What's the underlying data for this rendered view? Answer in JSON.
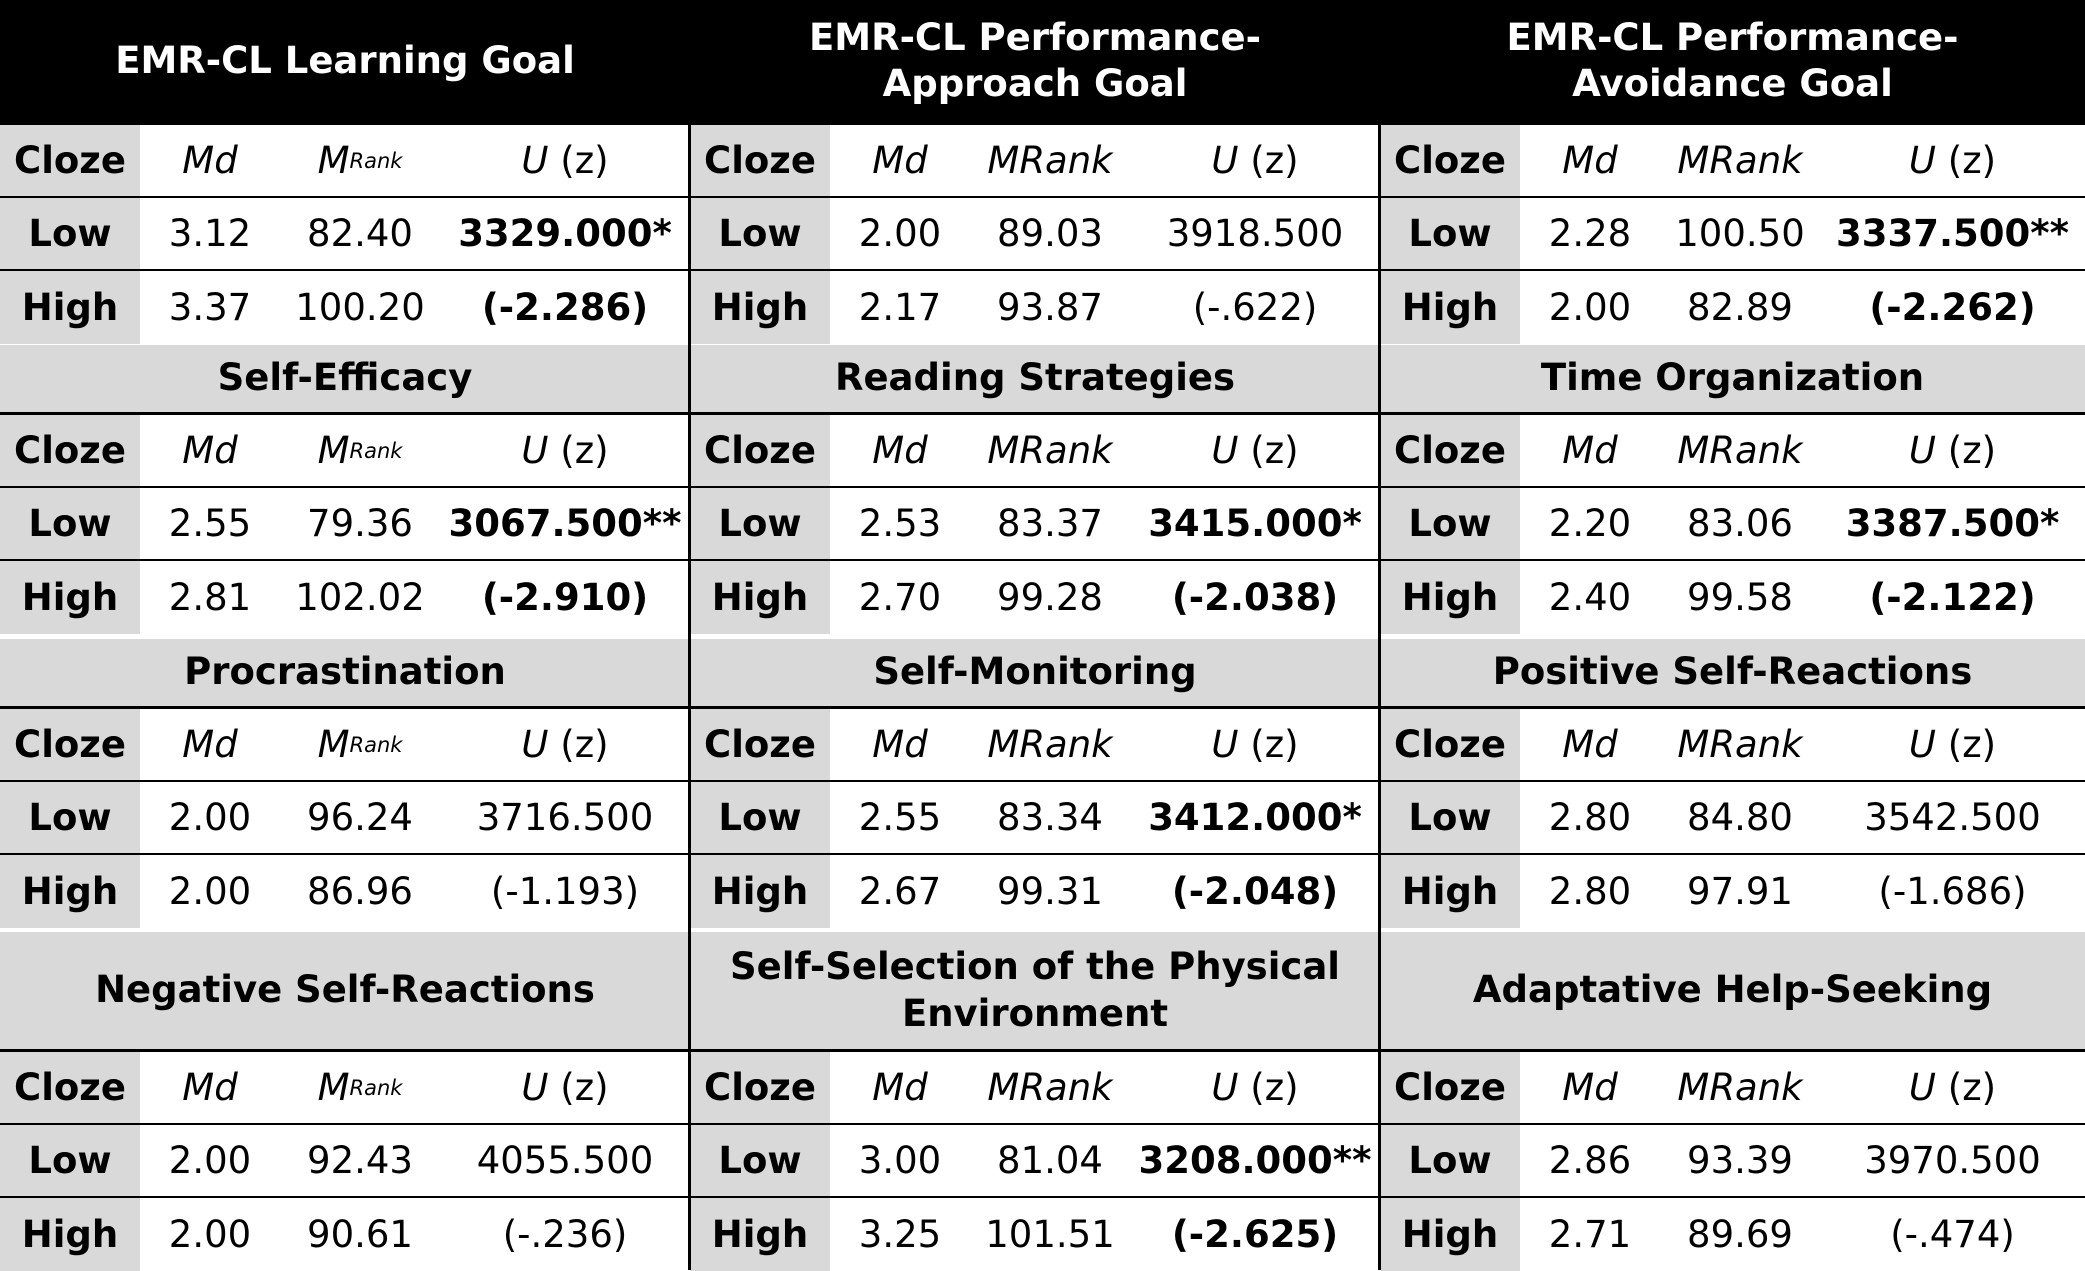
{
  "table": {
    "label_cloze": "Cloze",
    "label_md": "Md",
    "label_mrank": "MRank",
    "label_m": "M",
    "label_rank_sub": "Rank",
    "label_u": "U",
    "label_z": "(z)",
    "label_low": "Low",
    "label_high": "High"
  },
  "rows": [
    [
      {
        "title": "EMR-CL Learning Goal",
        "header_style": "dark",
        "mrank_style": "subscript",
        "low": {
          "md": "3.12",
          "mrank": "82.40",
          "u": "3329.000*",
          "sig": true
        },
        "high": {
          "md": "3.37",
          "mrank": "100.20",
          "u": "(-2.286)",
          "sig": true
        }
      },
      {
        "title": "EMR-CL Performance-Approach Goal",
        "header_style": "dark",
        "mrank_style": "plain",
        "low": {
          "md": "2.00",
          "mrank": "89.03",
          "u": "3918.500",
          "sig": false
        },
        "high": {
          "md": "2.17",
          "mrank": "93.87",
          "u": "(-.622)",
          "sig": false
        }
      },
      {
        "title": "EMR-CL Performance-Avoidance Goal",
        "header_style": "dark",
        "mrank_style": "plain",
        "low": {
          "md": "2.28",
          "mrank": "100.50",
          "u": "3337.500**",
          "sig": true
        },
        "high": {
          "md": "2.00",
          "mrank": "82.89",
          "u": "(-2.262)",
          "sig": true
        }
      }
    ],
    [
      {
        "title": "Self-Efficacy",
        "header_style": "gray",
        "mrank_style": "subscript",
        "low": {
          "md": "2.55",
          "mrank": "79.36",
          "u": "3067.500**",
          "sig": true
        },
        "high": {
          "md": "2.81",
          "mrank": "102.02",
          "u": "(-2.910)",
          "sig": true
        }
      },
      {
        "title": "Reading Strategies",
        "header_style": "gray",
        "mrank_style": "plain",
        "low": {
          "md": "2.53",
          "mrank": "83.37",
          "u": "3415.000*",
          "sig": true
        },
        "high": {
          "md": "2.70",
          "mrank": "99.28",
          "u": "(-2.038)",
          "sig": true
        }
      },
      {
        "title": "Time Organization",
        "header_style": "gray",
        "mrank_style": "plain",
        "low": {
          "md": "2.20",
          "mrank": "83.06",
          "u": "3387.500*",
          "sig": true
        },
        "high": {
          "md": "2.40",
          "mrank": "99.58",
          "u": "(-2.122)",
          "sig": true
        }
      }
    ],
    [
      {
        "title": "Procrastination",
        "header_style": "gray",
        "mrank_style": "subscript",
        "low": {
          "md": "2.00",
          "mrank": "96.24",
          "u": "3716.500",
          "sig": false
        },
        "high": {
          "md": "2.00",
          "mrank": "86.96",
          "u": "(-1.193)",
          "sig": false
        }
      },
      {
        "title": "Self-Monitoring",
        "header_style": "gray",
        "mrank_style": "plain",
        "low": {
          "md": "2.55",
          "mrank": "83.34",
          "u": "3412.000*",
          "sig": true
        },
        "high": {
          "md": "2.67",
          "mrank": "99.31",
          "u": "(-2.048)",
          "sig": true
        }
      },
      {
        "title": "Positive Self-Reactions",
        "header_style": "gray",
        "mrank_style": "plain",
        "low": {
          "md": "2.80",
          "mrank": "84.80",
          "u": "3542.500",
          "sig": false
        },
        "high": {
          "md": "2.80",
          "mrank": "97.91",
          "u": "(-1.686)",
          "sig": false
        }
      }
    ],
    [
      {
        "title": "Negative Self-Reactions",
        "header_style": "gray",
        "mrank_style": "subscript",
        "low": {
          "md": "2.00",
          "mrank": "92.43",
          "u": "4055.500",
          "sig": false
        },
        "high": {
          "md": "2.00",
          "mrank": "90.61",
          "u": "(-.236)",
          "sig": false
        }
      },
      {
        "title": "Self-Selection of the Physical Environment",
        "header_style": "gray",
        "mrank_style": "plain",
        "low": {
          "md": "3.00",
          "mrank": "81.04",
          "u": "3208.000**",
          "sig": true
        },
        "high": {
          "md": "3.25",
          "mrank": "101.51",
          "u": "(-2.625)",
          "sig": true
        }
      },
      {
        "title": "Adaptative Help-Seeking",
        "header_style": "gray",
        "mrank_style": "plain",
        "low": {
          "md": "2.86",
          "mrank": "93.39",
          "u": "3970.500",
          "sig": false
        },
        "high": {
          "md": "2.71",
          "mrank": "89.69",
          "u": "(-.474)",
          "sig": false
        }
      }
    ]
  ]
}
